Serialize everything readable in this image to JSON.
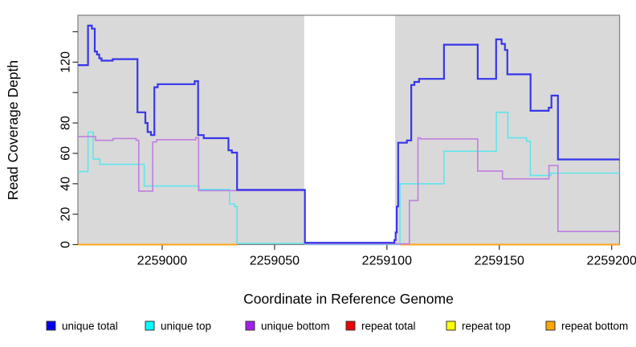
{
  "chart_data": {
    "type": "line",
    "subtype": "step-coverage-plot",
    "title": "",
    "xlabel": "Coordinate in Reference Genome",
    "ylabel": "Read Coverage Depth",
    "xlim": [
      2258962.5,
      2259203.5
    ],
    "ylim": [
      0,
      150
    ],
    "grid": false,
    "legend_position": "bottom",
    "plot_background": "#D9D9D9",
    "page_background": "#FFFFFF",
    "box_color": "#7F7F7F",
    "tick_color": "#333333",
    "highlight_band": {
      "x0": 2259063.2,
      "x1": 2259103.6,
      "color": "#FFFFFF"
    },
    "x_ticks": [
      {
        "value": 2259000,
        "label": "2259000"
      },
      {
        "value": 2259050,
        "label": "2259050"
      },
      {
        "value": 2259100,
        "label": "2259100"
      },
      {
        "value": 2259150,
        "label": "2259150"
      },
      {
        "value": 2259200,
        "label": "2259200"
      }
    ],
    "y_ticks": [
      {
        "value": 0,
        "label": "0"
      },
      {
        "value": 20,
        "label": "20"
      },
      {
        "value": 40,
        "label": "40"
      },
      {
        "value": 60,
        "label": "60"
      },
      {
        "value": 80,
        "label": "80"
      },
      {
        "value": 100,
        "label": ""
      },
      {
        "value": 120,
        "label": "120"
      },
      {
        "value": 140,
        "label": ""
      }
    ],
    "series": [
      {
        "name": "unique total",
        "legend_color": "#0000EE",
        "line_color": "#3636EA",
        "line_width": 2.2,
        "segments": [
          [
            [
              2258962.5,
              118
            ],
            [
              2258967,
              144
            ],
            [
              2258968.7,
              142
            ],
            [
              2258970,
              127
            ],
            [
              2258971,
              125
            ],
            [
              2258972,
              122.5
            ],
            [
              2258973,
              121
            ],
            [
              2258978,
              122
            ],
            [
              2258989,
              87
            ],
            [
              2258992.5,
              80
            ],
            [
              2258993.5,
              74
            ],
            [
              2258995,
              72
            ],
            [
              2258996.5,
              103.5
            ],
            [
              2258998,
              105.5
            ],
            [
              2259014.5,
              107.5
            ],
            [
              2259016,
              72
            ],
            [
              2259018.5,
              70
            ],
            [
              2259029.5,
              62
            ],
            [
              2259031,
              60.5
            ],
            [
              2259033.3,
              36
            ],
            [
              2259063.5,
              1.2
            ],
            [
              2259103.3,
              3
            ],
            [
              2259103.9,
              8
            ],
            [
              2259104.4,
              25
            ],
            [
              2259105,
              67
            ],
            [
              2259108.9,
              68.5
            ],
            [
              2259110.8,
              105
            ],
            [
              2259112.2,
              107
            ],
            [
              2259114.3,
              109
            ],
            [
              2259125.4,
              131.5
            ],
            [
              2259140.4,
              109
            ],
            [
              2259148.6,
              135
            ],
            [
              2259151,
              132
            ],
            [
              2259152.5,
              128
            ],
            [
              2259153.6,
              112
            ],
            [
              2259163.9,
              88
            ],
            [
              2259172,
              90
            ],
            [
              2259173.2,
              98
            ],
            [
              2259176.1,
              56
            ],
            [
              2259203.5,
              56
            ]
          ]
        ]
      },
      {
        "name": "unique top",
        "legend_color": "#00FFFF",
        "line_color": "#5FE5EA",
        "line_width": 1.6,
        "segments": [
          [
            [
              2258962.5,
              48
            ],
            [
              2258967,
              74
            ],
            [
              2258969.3,
              56.3
            ],
            [
              2258972.3,
              52.8
            ],
            [
              2258992,
              38.5
            ],
            [
              2259016.4,
              36.3
            ],
            [
              2259030,
              26.7
            ],
            [
              2259032.2,
              25
            ],
            [
              2259033.3,
              0.8
            ],
            [
              2259063.5,
              0.1
            ],
            [
              2259105.8,
              40
            ],
            [
              2259125.4,
              61.4
            ],
            [
              2259148.7,
              87
            ],
            [
              2259153.8,
              70.2
            ],
            [
              2259162.1,
              68
            ],
            [
              2259163.8,
              45.5
            ],
            [
              2259172.9,
              47
            ],
            [
              2259203.5,
              47
            ]
          ]
        ]
      },
      {
        "name": "unique bottom",
        "legend_color": "#A020F0",
        "line_color": "#BF7FDF",
        "line_width": 1.6,
        "segments": [
          [
            [
              2258962.5,
              71
            ],
            [
              2258970.4,
              68.6
            ],
            [
              2258978.2,
              69.8
            ],
            [
              2258988.4,
              68.6
            ],
            [
              2258989.6,
              35.2
            ],
            [
              2258995.8,
              67.5
            ],
            [
              2258997.5,
              69
            ],
            [
              2259014.9,
              70.3
            ],
            [
              2259016.2,
              35.5
            ],
            [
              2259063.5,
              0.5
            ],
            [
              2259110,
              29
            ],
            [
              2259113.8,
              70.2
            ],
            [
              2259114.8,
              69.5
            ],
            [
              2259140.4,
              48.4
            ],
            [
              2259151.4,
              43.2
            ],
            [
              2259172.1,
              52
            ],
            [
              2259176.1,
              8.6
            ],
            [
              2259203.5,
              8.6
            ]
          ]
        ]
      },
      {
        "name": "repeat total",
        "legend_color": "#EE0000",
        "line_color": "#EE0000",
        "line_width": 2,
        "segments": [
          [
            [
              2258962.5,
              0
            ],
            [
              2259033.3,
              0
            ]
          ],
          [
            [
              2259105.5,
              0
            ],
            [
              2259203.5,
              0
            ]
          ]
        ]
      },
      {
        "name": "repeat top",
        "legend_color": "#FFFF00",
        "line_color": "#FFFF00",
        "line_width": 2,
        "segments": [
          [
            [
              2258962.5,
              0
            ],
            [
              2259033.3,
              0
            ]
          ],
          [
            [
              2259105.5,
              0
            ],
            [
              2259203.5,
              0
            ]
          ]
        ]
      },
      {
        "name": "repeat bottom",
        "legend_color": "#FFA500",
        "line_color": "#FFA413",
        "line_width": 2,
        "segments": [
          [
            [
              2258962.5,
              0
            ],
            [
              2259033.3,
              0
            ]
          ],
          [
            [
              2259105.5,
              0
            ],
            [
              2259203.5,
              0
            ]
          ]
        ]
      }
    ],
    "legend": [
      {
        "label": "unique total",
        "color": "#0000EE"
      },
      {
        "label": "unique top",
        "color": "#00FFFF"
      },
      {
        "label": "unique bottom",
        "color": "#A020F0"
      },
      {
        "label": "repeat total",
        "color": "#EE0000"
      },
      {
        "label": "repeat top",
        "color": "#FFFF00"
      },
      {
        "label": "repeat bottom",
        "color": "#FFA500"
      }
    ]
  }
}
